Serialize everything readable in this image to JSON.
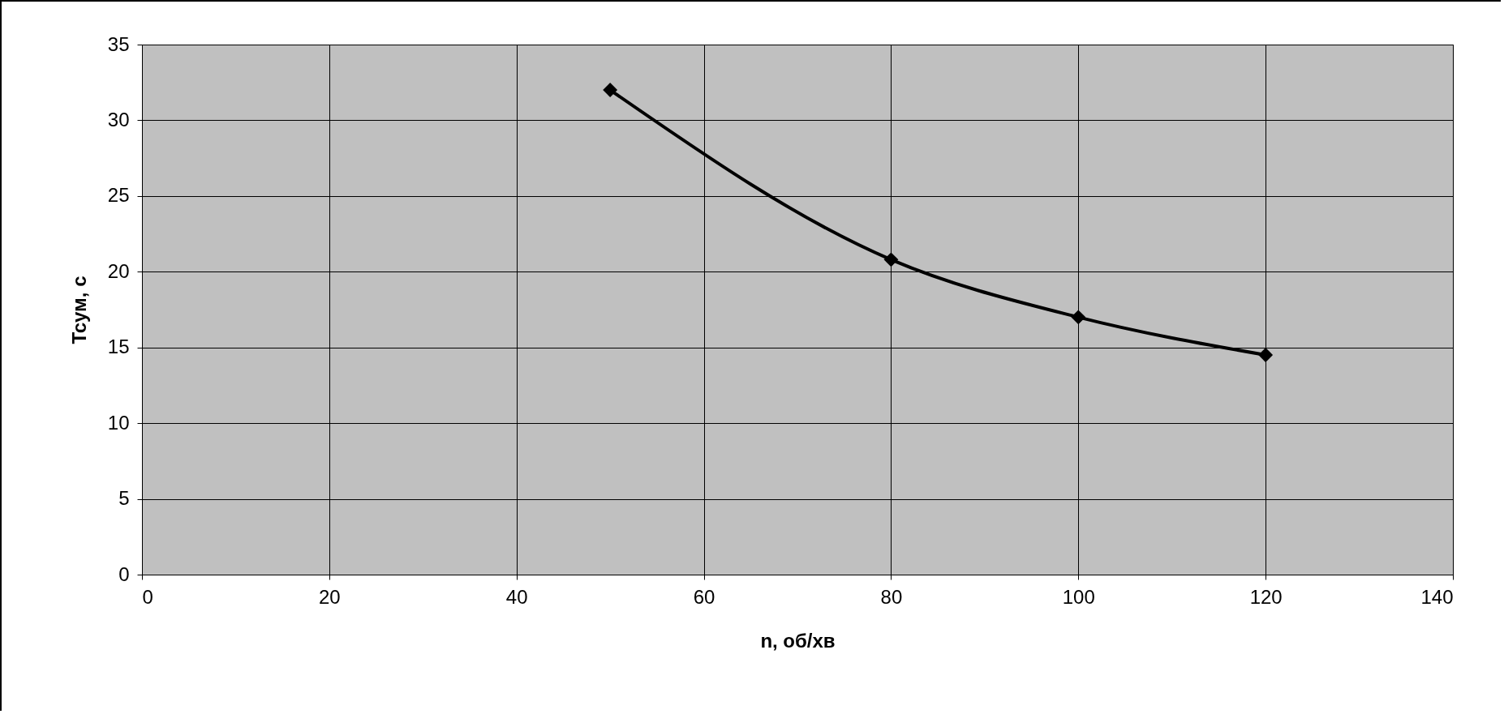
{
  "chart_data": {
    "type": "line",
    "xlabel": "n, об/хв",
    "ylabel": "Тсум, с",
    "x": [
      50,
      80,
      100,
      120
    ],
    "values": [
      32,
      20.8,
      17,
      14.5
    ],
    "color": "#000000",
    "xlim": [
      0,
      140
    ],
    "xticks": [
      0,
      20,
      40,
      60,
      80,
      100,
      120,
      140
    ],
    "ylim": [
      0,
      35
    ],
    "yticks": [
      0,
      5,
      10,
      15,
      20,
      25,
      30,
      35
    ],
    "grid": true,
    "marker": "diamond",
    "line_style": "solid"
  }
}
